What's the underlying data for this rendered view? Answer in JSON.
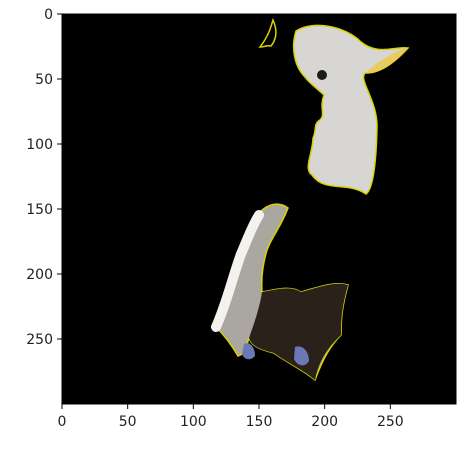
{
  "image": {
    "description_hint": "segmented cockatoo pieces on black background",
    "background": "#000000",
    "outline_color": "#e6e600"
  },
  "axes": {
    "x_range": [
      0,
      300
    ],
    "y_range": [
      0,
      300
    ],
    "x_ticks": [
      0,
      50,
      100,
      150,
      200,
      250
    ],
    "y_ticks": [
      0,
      50,
      100,
      150,
      200,
      250
    ]
  },
  "labels": {
    "x": [
      "0",
      "50",
      "100",
      "150",
      "200",
      "250"
    ],
    "y": [
      "0",
      "50",
      "100",
      "150",
      "200",
      "250"
    ]
  }
}
